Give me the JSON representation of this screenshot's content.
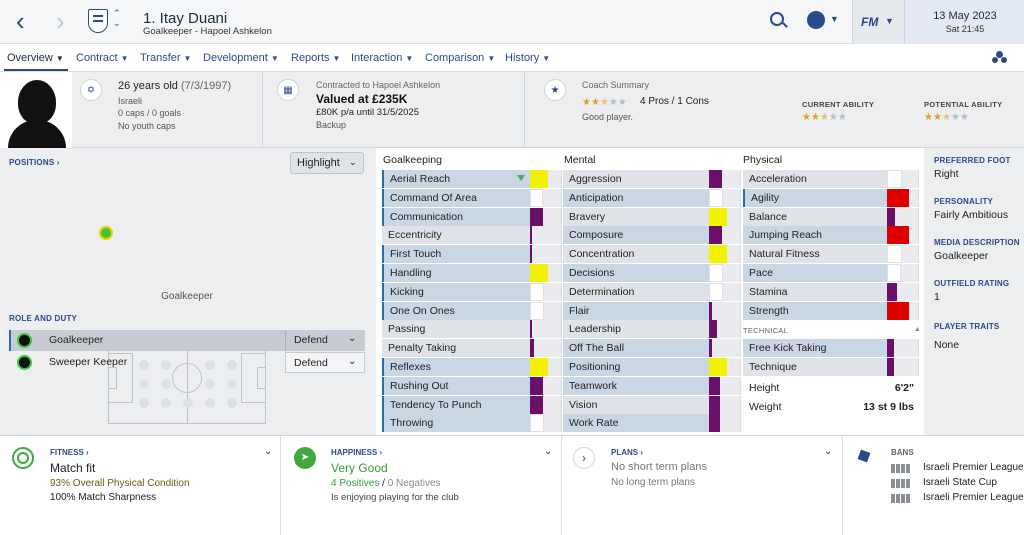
{
  "header": {
    "player_name": "1. Itay Duani",
    "subtitle": "Goalkeeper - Hapoel Ashkelon",
    "date": "13 May 2023",
    "time": "Sat 21:45",
    "fm_label": "FM"
  },
  "tabs": [
    {
      "label": "Overview"
    },
    {
      "label": "Contract"
    },
    {
      "label": "Transfer"
    },
    {
      "label": "Development"
    },
    {
      "label": "Reports"
    },
    {
      "label": "Interaction"
    },
    {
      "label": "Comparison"
    },
    {
      "label": "History"
    }
  ],
  "summary": {
    "age": "26 years old",
    "dob": "(7/3/1997)",
    "nationality": "Israeli",
    "caps": "0 caps / 0 goals",
    "youth": "No youth caps",
    "contract_label": "Contracted to Hapoel Ashkelon",
    "value": "Valued at £235K",
    "wage": "£80K p/a until 31/5/2025",
    "role": "Backup",
    "coach_label": "Coach Summary",
    "pros_cons": "4 Pros / 1 Cons",
    "coach_text": "Good player.",
    "coach_stars": 2.5,
    "current_ability_label": "CURRENT ABILITY",
    "current_ability_stars": 2.5,
    "potential_ability_label": "POTENTIAL ABILITY",
    "potential_ability_stars": 2.5
  },
  "positions": {
    "label": "POSITIONS",
    "highlight": "Highlight",
    "position_name": "Goalkeeper",
    "role_duty_label": "ROLE AND DUTY",
    "roles": [
      {
        "role": "Goalkeeper",
        "duty": "Defend"
      },
      {
        "role": "Sweeper Keeper",
        "duty": "Defend"
      }
    ]
  },
  "attributes": {
    "goalkeeping_title": "Goalkeeping",
    "mental_title": "Mental",
    "physical_title": "Physical",
    "technical_title": "TECHNICAL",
    "goalkeeping": [
      {
        "name": "Aerial Reach",
        "level": 0.65,
        "color": "#f2f200"
      },
      {
        "name": "Command Of Area",
        "level": 0.45,
        "color": "#ffffff"
      },
      {
        "name": "Communication",
        "level": 0.45,
        "color": "#6a0f6a"
      },
      {
        "name": "Eccentricity",
        "level": 0.05,
        "color": "#6a0f6a"
      },
      {
        "name": "First Touch",
        "level": 0.05,
        "color": "#6a0f6a"
      },
      {
        "name": "Handling",
        "level": 0.65,
        "color": "#f2f200"
      },
      {
        "name": "Kicking",
        "level": 0.5,
        "color": "#ffffff"
      },
      {
        "name": "One On Ones",
        "level": 0.5,
        "color": "#ffffff"
      },
      {
        "name": "Passing",
        "level": 0.05,
        "color": "#6a0f6a"
      },
      {
        "name": "Penalty Taking",
        "level": 0.15,
        "color": "#6a0f6a"
      },
      {
        "name": "Reflexes",
        "level": 0.65,
        "color": "#f2f200"
      },
      {
        "name": "Rushing Out",
        "level": 0.45,
        "color": "#6a0f6a"
      },
      {
        "name": "Tendency To Punch",
        "level": 0.45,
        "color": "#6a0f6a"
      },
      {
        "name": "Throwing",
        "level": 0.5,
        "color": "#ffffff"
      }
    ],
    "mental": [
      {
        "name": "Aggression",
        "level": 0.45,
        "color": "#6a0f6a"
      },
      {
        "name": "Anticipation",
        "level": 0.5,
        "color": "#ffffff"
      },
      {
        "name": "Bravery",
        "level": 0.65,
        "color": "#f2f200"
      },
      {
        "name": "Composure",
        "level": 0.45,
        "color": "#6a0f6a"
      },
      {
        "name": "Concentration",
        "level": 0.65,
        "color": "#f2f200"
      },
      {
        "name": "Decisions",
        "level": 0.5,
        "color": "#ffffff"
      },
      {
        "name": "Determination",
        "level": 0.5,
        "color": "#ffffff"
      },
      {
        "name": "Flair",
        "level": 0.1,
        "color": "#6a0f6a"
      },
      {
        "name": "Leadership",
        "level": 0.3,
        "color": "#6a0f6a"
      },
      {
        "name": "Off The Ball",
        "level": 0.1,
        "color": "#6a0f6a"
      },
      {
        "name": "Positioning",
        "level": 0.65,
        "color": "#f2f200"
      },
      {
        "name": "Teamwork",
        "level": 0.4,
        "color": "#6a0f6a"
      },
      {
        "name": "Vision",
        "level": 0.4,
        "color": "#6a0f6a"
      },
      {
        "name": "Work Rate",
        "level": 0.4,
        "color": "#6a0f6a"
      }
    ],
    "physical": [
      {
        "name": "Acceleration",
        "level": 0.55,
        "color": "#ffffff"
      },
      {
        "name": "Agility",
        "level": 0.8,
        "color": "#e00000"
      },
      {
        "name": "Balance",
        "level": 0.3,
        "color": "#6a0f6a"
      },
      {
        "name": "Jumping Reach",
        "level": 0.8,
        "color": "#e00000"
      },
      {
        "name": "Natural Fitness",
        "level": 0.55,
        "color": "#ffffff"
      },
      {
        "name": "Pace",
        "level": 0.5,
        "color": "#ffffff"
      },
      {
        "name": "Stamina",
        "level": 0.35,
        "color": "#6a0f6a"
      },
      {
        "name": "Strength",
        "level": 0.8,
        "color": "#e00000"
      }
    ],
    "technical": [
      {
        "name": "Free Kick Taking",
        "level": 0.25,
        "color": "#6a0f6a"
      },
      {
        "name": "Technique",
        "level": 0.25,
        "color": "#6a0f6a"
      }
    ],
    "height_label": "Height",
    "height_value": "6'2\"",
    "weight_label": "Weight",
    "weight_value": "13 st 9 lbs"
  },
  "info": {
    "preferred_foot_label": "PREFERRED FOOT",
    "preferred_foot": "Right",
    "personality_label": "PERSONALITY",
    "personality": "Fairly Ambitious",
    "media_label": "MEDIA DESCRIPTION",
    "media": "Goalkeeper",
    "outfield_label": "OUTFIELD RATING",
    "outfield": "1",
    "traits_label": "PLAYER TRAITS",
    "traits": "None"
  },
  "bottom": {
    "fitness_label": "FITNESS",
    "fitness_status": "Match fit",
    "fitness_line1": "93% Overall Physical Condition",
    "fitness_line2": "100% Match Sharpness",
    "happiness_label": "HAPPINESS",
    "happiness_status": "Very Good",
    "positives": "4 Positives",
    "separator": "/",
    "negatives": "0 Negatives",
    "happiness_text": "Is enjoying playing for the club",
    "plans_label": "PLANS",
    "plans_line1": "No short term plans",
    "plans_line2": "No long term plans",
    "bans_label": "BANS",
    "bans": [
      "Israeli Premier League",
      "Israeli State Cup",
      "Israeli Premier League"
    ]
  },
  "colors": {
    "accent": "#2a4a8a",
    "highlight_row": "#c9d6e3",
    "green": "#3a9a3a"
  }
}
